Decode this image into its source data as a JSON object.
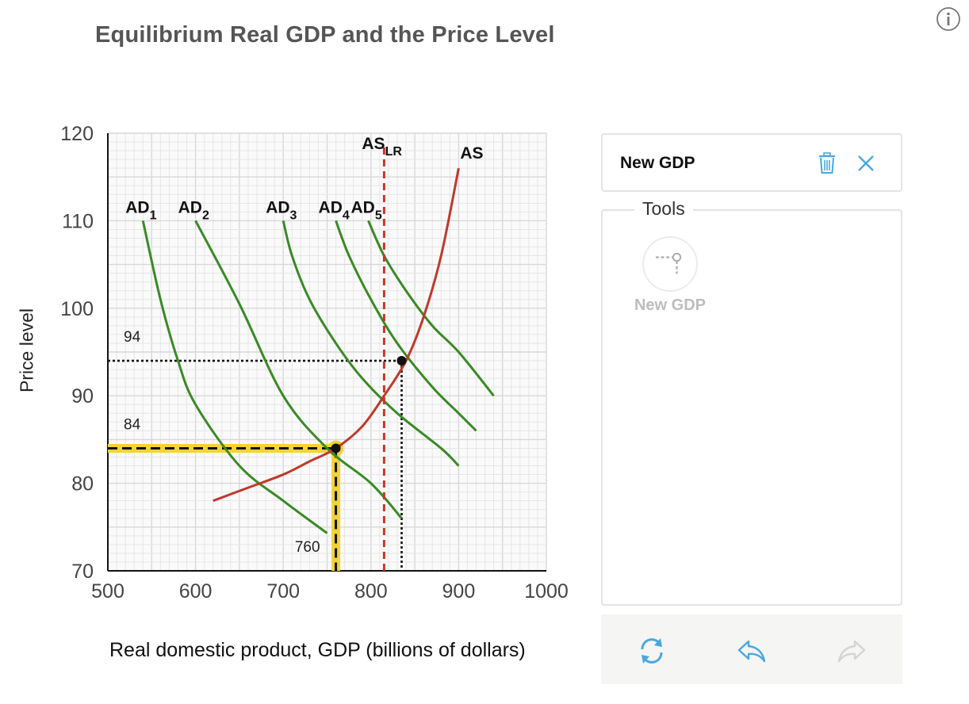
{
  "title": "Equilibrium Real GDP and the Price Level",
  "colors": {
    "ad": "#3a8a25",
    "as": "#c0392b",
    "highlight": "#f3d23a",
    "accent": "#4aa8e0",
    "grid": "#e6e6e6"
  },
  "panel": {
    "card_title": "New GDP",
    "tools_label": "Tools",
    "tool_name": "New GDP",
    "icons": [
      "trash-icon",
      "close-icon",
      "reset-icon",
      "undo-icon",
      "redo-icon",
      "info-icon"
    ]
  },
  "chart_data": {
    "type": "line",
    "title": "Equilibrium Real GDP and the Price Level",
    "xlabel": "Real domestic product, GDP (billions of dollars)",
    "ylabel": "Price level",
    "xlim": [
      500,
      1000
    ],
    "ylim": [
      70,
      120
    ],
    "x_ticks": [
      "500",
      "600",
      "700",
      "800",
      "900",
      "1000"
    ],
    "y_ticks": [
      "70",
      "80",
      "90",
      "100",
      "110",
      "120"
    ],
    "grid": true,
    "series": [
      {
        "name": "AD",
        "sub": "1",
        "type": "AD",
        "points": [
          [
            540,
            110
          ],
          [
            560,
            101
          ],
          [
            580,
            94
          ],
          [
            600,
            89
          ],
          [
            650,
            82
          ],
          [
            700,
            78
          ],
          [
            750,
            74.3
          ]
        ]
      },
      {
        "name": "AD",
        "sub": "2",
        "type": "AD",
        "points": [
          [
            600,
            110
          ],
          [
            650,
            100.5
          ],
          [
            700,
            90
          ],
          [
            750,
            84
          ],
          [
            800,
            80
          ],
          [
            835,
            76
          ]
        ]
      },
      {
        "name": "AD",
        "sub": "3",
        "type": "AD",
        "points": [
          [
            700,
            110
          ],
          [
            710,
            106
          ],
          [
            730,
            101
          ],
          [
            760,
            96
          ],
          [
            790,
            92
          ],
          [
            830,
            88
          ],
          [
            880,
            84
          ],
          [
            900,
            82
          ]
        ]
      },
      {
        "name": "AD",
        "sub": "4",
        "type": "AD",
        "points": [
          [
            760,
            110
          ],
          [
            775,
            106
          ],
          [
            800,
            101
          ],
          [
            830,
            96
          ],
          [
            870,
            91
          ],
          [
            900,
            88
          ],
          [
            920,
            86
          ]
        ]
      },
      {
        "name": "AD",
        "sub": "5",
        "type": "AD",
        "points": [
          [
            797,
            110
          ],
          [
            815,
            106
          ],
          [
            840,
            102
          ],
          [
            870,
            98
          ],
          [
            900,
            95
          ],
          [
            940,
            90
          ]
        ]
      },
      {
        "name": "AS",
        "sub": "",
        "type": "AS",
        "points": [
          [
            620,
            78
          ],
          [
            660,
            79.5
          ],
          [
            700,
            81
          ],
          [
            730,
            82.5
          ],
          [
            760,
            84
          ],
          [
            790,
            86.5
          ],
          [
            815,
            90
          ],
          [
            840,
            94
          ],
          [
            860,
            99
          ],
          [
            880,
            106
          ],
          [
            900,
            116
          ]
        ]
      },
      {
        "name": "AS",
        "sub": "LR",
        "type": "ASLR",
        "x": 815
      }
    ],
    "points": [
      {
        "x": 760,
        "y": 84,
        "highlighted": true
      },
      {
        "x": 835,
        "y": 94,
        "highlighted": false
      }
    ],
    "annotations": [
      {
        "text": "94",
        "y": 94
      },
      {
        "text": "84",
        "y": 84
      },
      {
        "text": "760",
        "x": 760
      }
    ]
  }
}
